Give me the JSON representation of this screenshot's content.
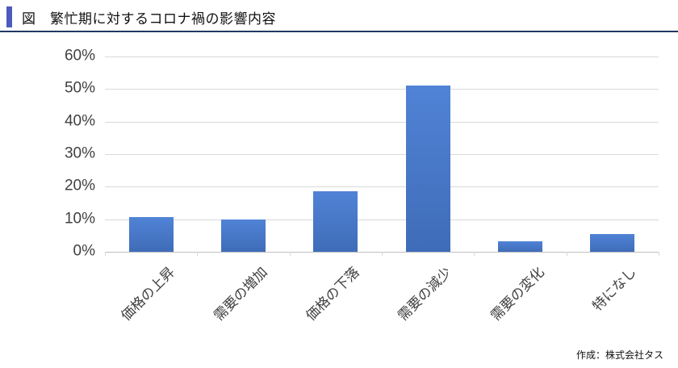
{
  "header": {
    "title": "図　繁忙期に対するコロナ禍の影響内容",
    "accent_color": "#4d5bbf",
    "underline_color": "#203864"
  },
  "chart_data": {
    "type": "bar",
    "title": "図　繁忙期に対するコロナ禍の影響内容",
    "categories": [
      "価格の上昇",
      "需要の増加",
      "価格の下落",
      "需要の減少",
      "需要の変化",
      "特になし"
    ],
    "values": [
      10.7,
      10.0,
      18.6,
      51.0,
      3.2,
      5.5
    ],
    "xlabel": "",
    "ylabel": "",
    "ylim": [
      0,
      60
    ],
    "ytick_step": 10,
    "ytick_labels": [
      "0%",
      "10%",
      "20%",
      "30%",
      "40%",
      "50%",
      "60%"
    ],
    "grid": true,
    "legend": "none",
    "bar_color": "#4472c4"
  },
  "footer": {
    "credit": "作成：株式会社タス"
  }
}
